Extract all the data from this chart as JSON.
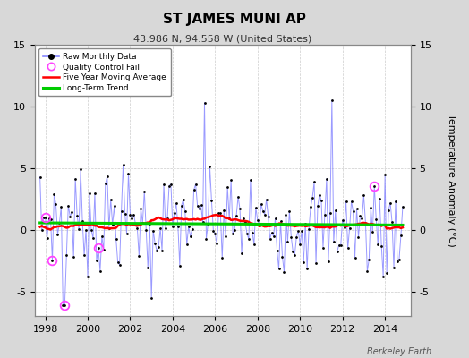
{
  "title": "ST JAMES MUNI AP",
  "subtitle": "43.986 N, 94.558 W (United States)",
  "ylabel": "Temperature Anomaly (°C)",
  "credit": "Berkeley Earth",
  "xlim": [
    1997.5,
    2015.2
  ],
  "ylim": [
    -7,
    12
  ],
  "yticks": [
    -5,
    0,
    5,
    10,
    15
  ],
  "xticks": [
    1998,
    2000,
    2002,
    2004,
    2006,
    2008,
    2010,
    2012,
    2014
  ],
  "fig_bg_color": "#d8d8d8",
  "plot_bg_color": "#ffffff",
  "grid_color": "#cccccc",
  "raw_line_color": "#8888ff",
  "dot_color": "#000000",
  "moving_avg_color": "#ff0000",
  "trend_color": "#00cc00",
  "qc_fail_color": "#ff44ff",
  "n_months": 206,
  "start_year": 1997.75
}
